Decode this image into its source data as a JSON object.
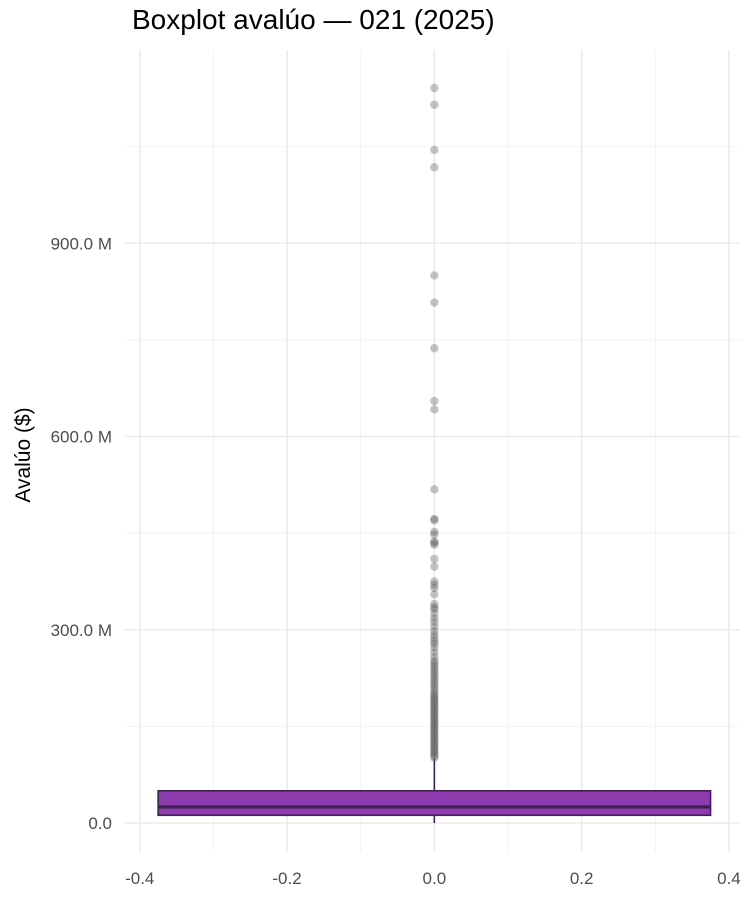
{
  "chart_data": {
    "type": "boxplot",
    "title": "Boxplot avalúo — 021 (2025)",
    "xlabel": "",
    "ylabel": "Avalúo ($)",
    "x_ticks": [
      "-0.4",
      "-0.2",
      "0.0",
      "0.2",
      "0.4"
    ],
    "x_tick_values": [
      -0.4,
      -0.2,
      0.0,
      0.2,
      0.4
    ],
    "y_ticks": [
      "0.0",
      "300.0 M",
      "600.0 M",
      "900.0 M"
    ],
    "y_tick_values": [
      0,
      300000000,
      600000000,
      900000000
    ],
    "xlim": [
      -0.42,
      0.415
    ],
    "ylim": [
      -45000000,
      1200000000
    ],
    "grid": true,
    "box": {
      "x_center": 0.0,
      "half_width": 0.375,
      "q1": 12000000,
      "median": 25000000,
      "q3": 50000000,
      "whisker_low": 0,
      "whisker_high": 100000000,
      "fill": "#8E3BAF",
      "stroke": "#3D2250"
    },
    "outliers": [
      1141000000,
      1115000000,
      1045000000,
      1018000000,
      850000000,
      808000000,
      737000000,
      655000000,
      642000000,
      518000000,
      472000000,
      470000000,
      452000000,
      448000000,
      437000000,
      435000000,
      432000000,
      410000000,
      398000000,
      375000000,
      370000000,
      365000000,
      355000000,
      340000000,
      335000000,
      332000000,
      325000000,
      318000000,
      312000000,
      305000000,
      298000000,
      292000000,
      287000000,
      282000000,
      278000000,
      272000000,
      265000000,
      258000000,
      252000000,
      248000000,
      244000000,
      240000000,
      236000000,
      232000000,
      228000000,
      224000000,
      220000000,
      216000000,
      212000000,
      208000000,
      204000000,
      200000000,
      197000000,
      194000000,
      191000000,
      188000000,
      185000000,
      182000000,
      179000000,
      176000000,
      173000000,
      170000000,
      167000000,
      164000000,
      161000000,
      158000000,
      155000000,
      152000000,
      149000000,
      146000000,
      143000000,
      140000000,
      137000000,
      134000000,
      131000000,
      128000000,
      125000000,
      122000000,
      119000000,
      116000000,
      113000000,
      110000000,
      107000000,
      104000000,
      101000000
    ],
    "outlier_color": "#555555"
  }
}
